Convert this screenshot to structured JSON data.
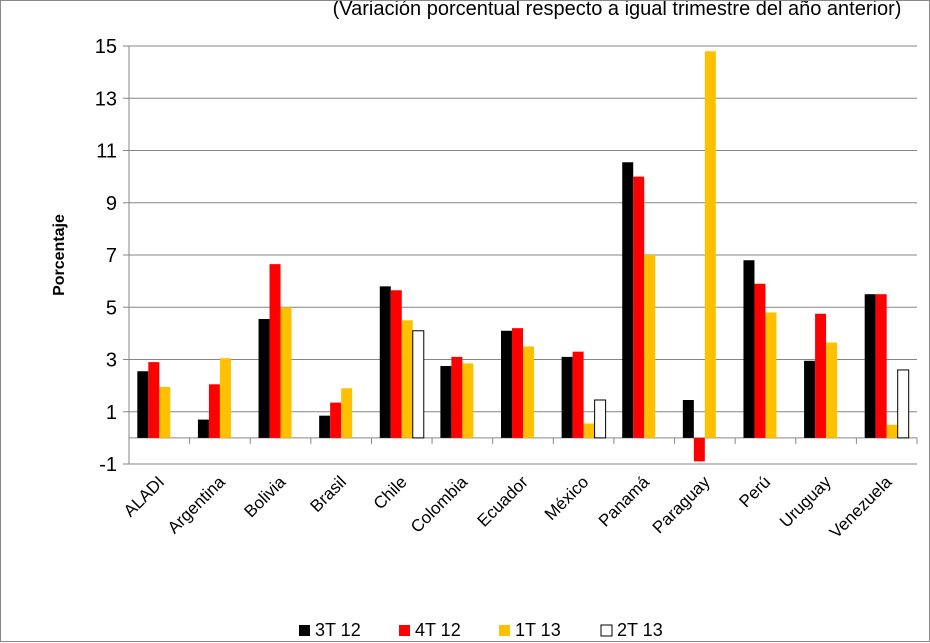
{
  "chart_data": {
    "type": "bar",
    "subtitle": "(Variación porcentual respecto a igual trimestre del año anterior)",
    "ylabel": "Porcentaje",
    "xlabel": "",
    "ylim": [
      -1,
      15
    ],
    "yticks": [
      -1,
      1,
      3,
      5,
      7,
      9,
      11,
      13,
      15
    ],
    "grid": true,
    "legend_position": "bottom",
    "categories": [
      "ALADI",
      "Argentina",
      "Bolivia",
      "Brasil",
      "Chile",
      "Colombia",
      "Ecuador",
      "México",
      "Panamá",
      "Paraguay",
      "Perú",
      "Uruguay",
      "Venezuela"
    ],
    "series": [
      {
        "name": "3T 12",
        "color": "#000000",
        "values": [
          2.55,
          0.7,
          4.55,
          0.85,
          5.8,
          2.75,
          4.1,
          3.1,
          10.55,
          1.45,
          6.8,
          2.95,
          5.5
        ]
      },
      {
        "name": "4T 12",
        "color": "#ff0000",
        "values": [
          2.9,
          2.05,
          6.65,
          1.35,
          5.65,
          3.1,
          4.2,
          3.3,
          10.0,
          -0.9,
          5.9,
          4.75,
          5.5
        ]
      },
      {
        "name": "1T 13",
        "color": "#ffc000",
        "values": [
          1.95,
          3.05,
          5.0,
          1.9,
          4.5,
          2.85,
          3.5,
          0.55,
          7.0,
          14.8,
          4.8,
          3.65,
          0.5
        ]
      },
      {
        "name": "2T 13",
        "color": "#ffffff",
        "values": [
          null,
          null,
          null,
          null,
          4.1,
          null,
          null,
          1.45,
          null,
          null,
          null,
          null,
          2.6
        ]
      }
    ]
  }
}
